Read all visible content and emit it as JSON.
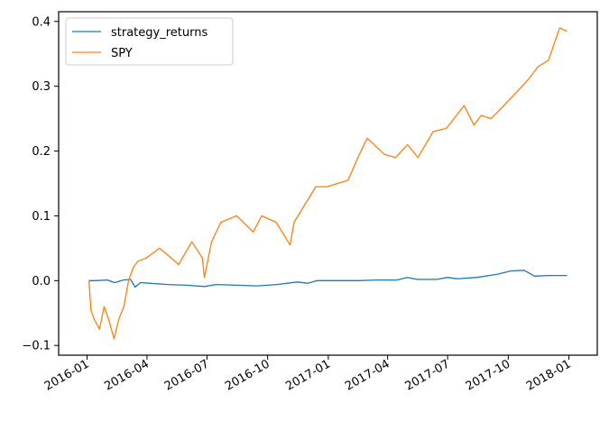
{
  "chart_data": {
    "type": "line",
    "x_type": "date",
    "xlim": [
      "2015-11-19",
      "2018-02-13"
    ],
    "ylim": [
      -0.115,
      0.415
    ],
    "x_ticks": [
      {
        "date": "2016-01-01",
        "label": "2016-01"
      },
      {
        "date": "2016-04-01",
        "label": "2016-04"
      },
      {
        "date": "2016-07-01",
        "label": "2016-07"
      },
      {
        "date": "2016-10-01",
        "label": "2016-10"
      },
      {
        "date": "2017-01-01",
        "label": "2017-01"
      },
      {
        "date": "2017-04-01",
        "label": "2017-04"
      },
      {
        "date": "2017-07-01",
        "label": "2017-07"
      },
      {
        "date": "2017-10-01",
        "label": "2017-10"
      },
      {
        "date": "2018-01-01",
        "label": "2018-01"
      }
    ],
    "y_ticks": [
      {
        "value": -0.1,
        "label": "−0.1"
      },
      {
        "value": 0.0,
        "label": "0.0"
      },
      {
        "value": 0.1,
        "label": "0.1"
      },
      {
        "value": 0.2,
        "label": "0.2"
      },
      {
        "value": 0.3,
        "label": "0.3"
      },
      {
        "value": 0.4,
        "label": "0.4"
      }
    ],
    "grid": false,
    "legend_position": "top-left",
    "series": [
      {
        "name": "strategy_returns",
        "color": "#1f77b4",
        "points": [
          [
            "2016-01-04",
            0.0
          ],
          [
            "2016-01-15",
            0.0
          ],
          [
            "2016-02-01",
            0.001
          ],
          [
            "2016-02-12",
            -0.003
          ],
          [
            "2016-02-25",
            0.001
          ],
          [
            "2016-03-07",
            0.002
          ],
          [
            "2016-03-14",
            -0.01
          ],
          [
            "2016-03-22",
            -0.003
          ],
          [
            "2016-04-05",
            -0.004
          ],
          [
            "2016-05-02",
            -0.006
          ],
          [
            "2016-06-01",
            -0.007
          ],
          [
            "2016-06-27",
            -0.009
          ],
          [
            "2016-07-15",
            -0.006
          ],
          [
            "2016-08-15",
            -0.007
          ],
          [
            "2016-09-15",
            -0.008
          ],
          [
            "2016-10-15",
            -0.006
          ],
          [
            "2016-11-15",
            -0.002
          ],
          [
            "2016-12-01",
            -0.004
          ],
          [
            "2016-12-15",
            0.0
          ],
          [
            "2017-01-15",
            0.0
          ],
          [
            "2017-02-15",
            0.0
          ],
          [
            "2017-03-15",
            0.001
          ],
          [
            "2017-04-15",
            0.001
          ],
          [
            "2017-05-01",
            0.005
          ],
          [
            "2017-05-15",
            0.002
          ],
          [
            "2017-06-15",
            0.002
          ],
          [
            "2017-07-01",
            0.005
          ],
          [
            "2017-07-15",
            0.003
          ],
          [
            "2017-08-15",
            0.005
          ],
          [
            "2017-09-15",
            0.01
          ],
          [
            "2017-10-05",
            0.015
          ],
          [
            "2017-10-25",
            0.016
          ],
          [
            "2017-11-10",
            0.007
          ],
          [
            "2017-12-01",
            0.008
          ],
          [
            "2017-12-29",
            0.008
          ]
        ]
      },
      {
        "name": "SPY",
        "color": "#ff7f0e",
        "points": [
          [
            "2016-01-04",
            0.0
          ],
          [
            "2016-01-07",
            -0.045
          ],
          [
            "2016-01-12",
            -0.06
          ],
          [
            "2016-01-20",
            -0.075
          ],
          [
            "2016-01-27",
            -0.04
          ],
          [
            "2016-02-03",
            -0.06
          ],
          [
            "2016-02-11",
            -0.09
          ],
          [
            "2016-02-18",
            -0.06
          ],
          [
            "2016-02-26",
            -0.04
          ],
          [
            "2016-03-04",
            0.0
          ],
          [
            "2016-03-11",
            0.02
          ],
          [
            "2016-03-18",
            0.03
          ],
          [
            "2016-03-31",
            0.035
          ],
          [
            "2016-04-20",
            0.05
          ],
          [
            "2016-05-02",
            0.04
          ],
          [
            "2016-05-19",
            0.025
          ],
          [
            "2016-06-08",
            0.06
          ],
          [
            "2016-06-24",
            0.035
          ],
          [
            "2016-06-27",
            0.005
          ],
          [
            "2016-07-08",
            0.06
          ],
          [
            "2016-07-22",
            0.09
          ],
          [
            "2016-08-15",
            0.1
          ],
          [
            "2016-09-09",
            0.075
          ],
          [
            "2016-09-22",
            0.1
          ],
          [
            "2016-10-14",
            0.09
          ],
          [
            "2016-11-04",
            0.055
          ],
          [
            "2016-11-10",
            0.09
          ],
          [
            "2016-12-13",
            0.145
          ],
          [
            "2016-12-30",
            0.145
          ],
          [
            "2017-01-31",
            0.155
          ],
          [
            "2017-02-15",
            0.19
          ],
          [
            "2017-03-01",
            0.22
          ],
          [
            "2017-03-27",
            0.195
          ],
          [
            "2017-04-13",
            0.19
          ],
          [
            "2017-05-01",
            0.21
          ],
          [
            "2017-05-17",
            0.19
          ],
          [
            "2017-06-09",
            0.23
          ],
          [
            "2017-06-29",
            0.235
          ],
          [
            "2017-07-26",
            0.27
          ],
          [
            "2017-08-10",
            0.24
          ],
          [
            "2017-08-21",
            0.255
          ],
          [
            "2017-09-05",
            0.25
          ],
          [
            "2017-09-29",
            0.275
          ],
          [
            "2017-10-31",
            0.31
          ],
          [
            "2017-11-15",
            0.33
          ],
          [
            "2017-12-01",
            0.34
          ],
          [
            "2017-12-18",
            0.39
          ],
          [
            "2017-12-29",
            0.385
          ]
        ]
      }
    ]
  }
}
